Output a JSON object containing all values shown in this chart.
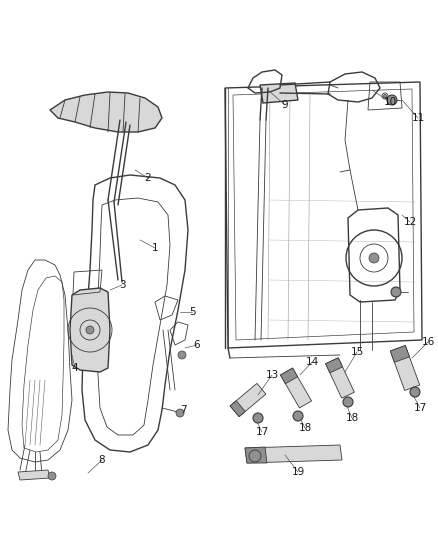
{
  "bg_color": "#ffffff",
  "line_color": "#3a3a3a",
  "label_color": "#1a1a1a",
  "fig_width": 4.38,
  "fig_height": 5.33,
  "dpi": 100,
  "label_fontsize": 7.5,
  "lw_main": 1.0,
  "lw_thin": 0.6,
  "lw_thick": 1.4,
  "gray_fill": "#b0b0b0",
  "light_gray": "#d8d8d8",
  "mid_gray": "#909090"
}
